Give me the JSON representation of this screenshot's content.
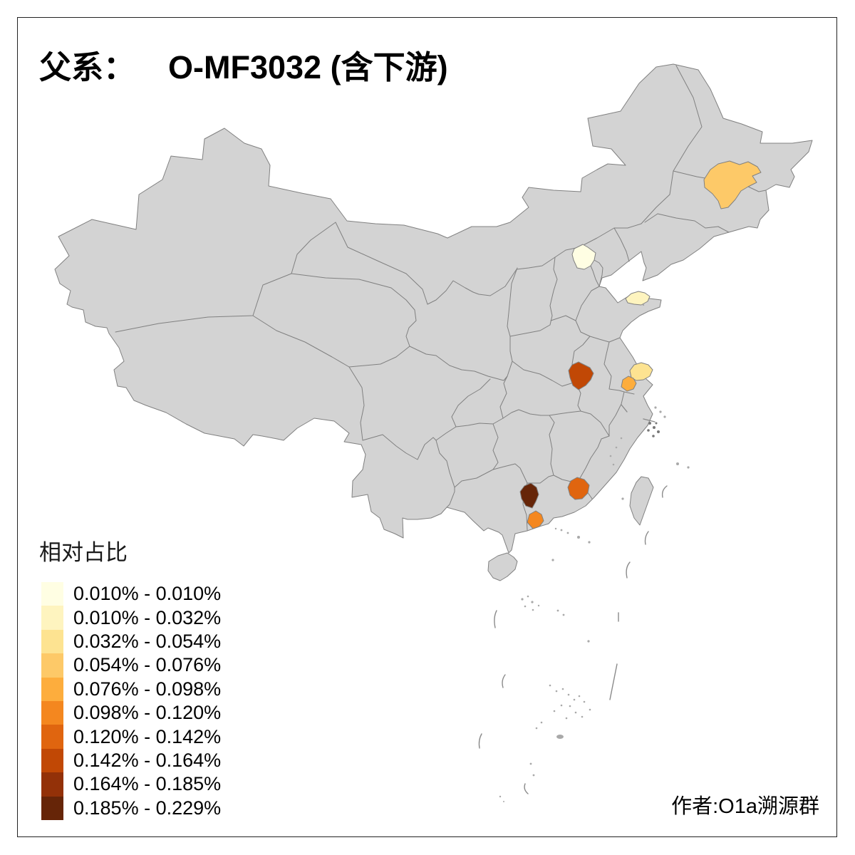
{
  "title": {
    "prefix": "父系：",
    "main": "O-MF3032 (含下游)"
  },
  "legend": {
    "title": "相对占比",
    "items": [
      {
        "label": "0.010% - 0.010%",
        "color": "#FFFEE3"
      },
      {
        "label": "0.010% - 0.032%",
        "color": "#FEF4BF"
      },
      {
        "label": "0.032% - 0.054%",
        "color": "#FDE391"
      },
      {
        "label": "0.054% - 0.076%",
        "color": "#FDC968"
      },
      {
        "label": "0.076% - 0.098%",
        "color": "#FDAD3D"
      },
      {
        "label": "0.098% - 0.120%",
        "color": "#F4871F"
      },
      {
        "label": "0.120% - 0.142%",
        "color": "#E0650F"
      },
      {
        "label": "0.142% - 0.164%",
        "color": "#C14805"
      },
      {
        "label": "0.164% - 0.185%",
        "color": "#933108"
      },
      {
        "label": "0.185% - 0.229%",
        "color": "#662508"
      }
    ]
  },
  "credit": "作者:O1a溯源群",
  "map": {
    "land_fill": "#D3D3D3",
    "border_color": "#808080",
    "regions": [
      {
        "id": "region-beijing",
        "range": "0.010% - 0.010%",
        "color": "#FFFEE3"
      },
      {
        "id": "region-shandong-coast",
        "range": "0.010% - 0.032%",
        "color": "#FEF4BF"
      },
      {
        "id": "region-jiangsu-coast",
        "range": "0.032% - 0.054%",
        "color": "#FDE391"
      },
      {
        "id": "region-northeast",
        "range": "0.054% - 0.076%",
        "color": "#FDC968"
      },
      {
        "id": "region-jiangsu-south",
        "range": "0.076% - 0.098%",
        "color": "#FDAD3D"
      },
      {
        "id": "region-guangdong-south",
        "range": "0.098% - 0.120%",
        "color": "#F4871F"
      },
      {
        "id": "region-guangdong-east",
        "range": "0.120% - 0.142%",
        "color": "#E0650F"
      },
      {
        "id": "region-anhui",
        "range": "0.142% - 0.164%",
        "color": "#C14805"
      },
      {
        "id": "region-guangdong-west",
        "range": "0.185% - 0.229%",
        "color": "#662508"
      }
    ]
  }
}
